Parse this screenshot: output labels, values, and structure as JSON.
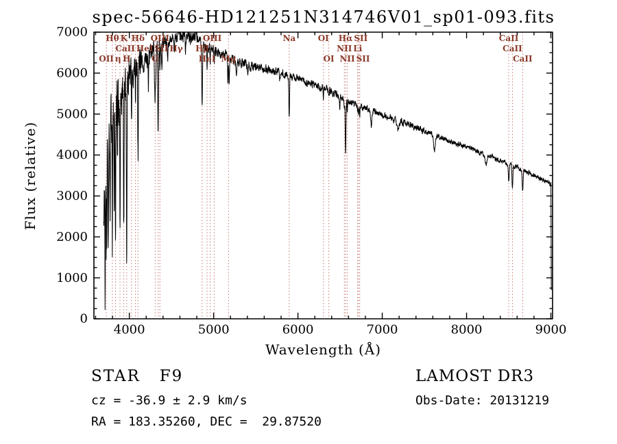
{
  "chart_data": {
    "type": "line",
    "title": "spec-56646-HD121251N314746V01_sp01-093.fits",
    "xlabel": "Wavelength (Å)",
    "ylabel": "Flux (relative)",
    "xlim": [
      3580,
      9020
    ],
    "ylim": [
      0,
      7000
    ],
    "xticks": [
      4000,
      5000,
      6000,
      7000,
      8000,
      9000
    ],
    "yticks": [
      0,
      1000,
      2000,
      3000,
      4000,
      5000,
      6000,
      7000
    ],
    "x_minor_step": 200,
    "y_minor_step": 250,
    "grid": false,
    "spectrum_color": "#000000",
    "marker_line_color": "#c4766e",
    "marker_label_color": "#8a3828",
    "sampling_step": 2,
    "wavelength_range": [
      3696,
      9000
    ],
    "edge_drop": [
      [
        9001,
        3000
      ],
      [
        9003,
        1800
      ],
      [
        9005,
        700
      ]
    ],
    "noise": {
      "seed": 20131219,
      "ar": 0.55,
      "amplitudes": [
        [
          3900,
          650
        ],
        [
          4000,
          480
        ],
        [
          4150,
          340
        ],
        [
          4400,
          210
        ],
        [
          4800,
          130
        ],
        [
          5500,
          95
        ],
        [
          6500,
          75
        ],
        [
          7500,
          60
        ],
        [
          9100,
          48
        ]
      ]
    },
    "continuum": [
      [
        3696,
        2100
      ],
      [
        3720,
        3500
      ],
      [
        3750,
        4250
      ],
      [
        3780,
        4650
      ],
      [
        3820,
        4950
      ],
      [
        3860,
        5250
      ],
      [
        3900,
        5480
      ],
      [
        3950,
        5680
      ],
      [
        4000,
        5880
      ],
      [
        4050,
        6000
      ],
      [
        4100,
        6130
      ],
      [
        4150,
        6240
      ],
      [
        4200,
        6380
      ],
      [
        4250,
        6480
      ],
      [
        4300,
        6570
      ],
      [
        4350,
        6640
      ],
      [
        4400,
        6730
      ],
      [
        4450,
        6790
      ],
      [
        4500,
        6840
      ],
      [
        4550,
        6890
      ],
      [
        4600,
        6910
      ],
      [
        4650,
        6920
      ],
      [
        4700,
        6900
      ],
      [
        4750,
        6880
      ],
      [
        4800,
        6850
      ],
      [
        4850,
        6800
      ],
      [
        4900,
        6700
      ],
      [
        4950,
        6620
      ],
      [
        5000,
        6560
      ],
      [
        5100,
        6460
      ],
      [
        5200,
        6360
      ],
      [
        5300,
        6290
      ],
      [
        5400,
        6230
      ],
      [
        5500,
        6170
      ],
      [
        5600,
        6110
      ],
      [
        5700,
        6060
      ],
      [
        5800,
        6010
      ],
      [
        5900,
        5950
      ],
      [
        6000,
        5870
      ],
      [
        6100,
        5790
      ],
      [
        6200,
        5710
      ],
      [
        6300,
        5630
      ],
      [
        6400,
        5530
      ],
      [
        6500,
        5430
      ],
      [
        6600,
        5310
      ],
      [
        6700,
        5210
      ],
      [
        6800,
        5140
      ],
      [
        6900,
        5070
      ],
      [
        7000,
        4990
      ],
      [
        7100,
        4910
      ],
      [
        7200,
        4830
      ],
      [
        7300,
        4750
      ],
      [
        7400,
        4670
      ],
      [
        7500,
        4590
      ],
      [
        7600,
        4510
      ],
      [
        7700,
        4430
      ],
      [
        7800,
        4350
      ],
      [
        7900,
        4270
      ],
      [
        8000,
        4190
      ],
      [
        8100,
        4110
      ],
      [
        8200,
        4030
      ],
      [
        8300,
        3950
      ],
      [
        8400,
        3870
      ],
      [
        8500,
        3790
      ],
      [
        8600,
        3700
      ],
      [
        8700,
        3610
      ],
      [
        8800,
        3510
      ],
      [
        8900,
        3410
      ],
      [
        9000,
        3290
      ]
    ],
    "absorption_lines": [
      [
        3712,
        2600,
        2.5
      ],
      [
        3727,
        2000,
        2.5
      ],
      [
        3734,
        2200,
        2.5
      ],
      [
        3750,
        2900,
        3
      ],
      [
        3771,
        2500,
        3
      ],
      [
        3799,
        3000,
        3
      ],
      [
        3820,
        1600,
        2.5
      ],
      [
        3836,
        3100,
        3
      ],
      [
        3860,
        1300,
        2.5
      ],
      [
        3889,
        2900,
        3
      ],
      [
        3934,
        3600,
        3.5
      ],
      [
        3969,
        4400,
        4
      ],
      [
        4026,
        1000,
        3
      ],
      [
        4072,
        800,
        3
      ],
      [
        4103,
        2200,
        4.5
      ],
      [
        4227,
        700,
        3
      ],
      [
        4306,
        1150,
        7
      ],
      [
        4342,
        1950,
        4.5
      ],
      [
        4363,
        500,
        3
      ],
      [
        4384,
        520,
        3.5
      ],
      [
        4455,
        420,
        4
      ],
      [
        4531,
        420,
        4
      ],
      [
        4668,
        350,
        4
      ],
      [
        4863,
        1550,
        5
      ],
      [
        4922,
        480,
        4
      ],
      [
        4959,
        300,
        3
      ],
      [
        5007,
        300,
        3
      ],
      [
        5169,
        620,
        4
      ],
      [
        5184,
        600,
        4
      ],
      [
        5270,
        450,
        5
      ],
      [
        5406,
        320,
        4
      ],
      [
        5782,
        250,
        4
      ],
      [
        5896,
        980,
        4.5
      ],
      [
        6302,
        260,
        3
      ],
      [
        6366,
        190,
        3
      ],
      [
        6495,
        260,
        4
      ],
      [
        6550,
        260,
        3
      ],
      [
        6565,
        1280,
        4.5
      ],
      [
        6585,
        260,
        3
      ],
      [
        6708,
        170,
        3
      ],
      [
        6718,
        210,
        3
      ],
      [
        6733,
        210,
        3
      ],
      [
        6870,
        380,
        8
      ],
      [
        7190,
        260,
        12
      ],
      [
        7620,
        380,
        10
      ],
      [
        8230,
        260,
        10
      ],
      [
        8500,
        460,
        5
      ],
      [
        8544,
        560,
        5
      ],
      [
        8665,
        520,
        5
      ]
    ],
    "marker_lines": [
      3727,
      3799,
      3836,
      3889,
      3934,
      3969,
      4026,
      4072,
      4103,
      4306,
      4342,
      4363,
      4863,
      4922,
      4959,
      5007,
      5177,
      5896,
      6302,
      6366,
      6550,
      6565,
      6585,
      6708,
      6718,
      6733,
      8500,
      8544,
      8665
    ],
    "marker_labels": [
      {
        "wavelength": 3799,
        "label": "Hθ",
        "row": 1
      },
      {
        "wavelength": 3934,
        "label": "K",
        "row": 1
      },
      {
        "wavelength": 4103,
        "label": "Hδ",
        "row": 1
      },
      {
        "wavelength": 4363,
        "label": "OIII",
        "row": 1
      },
      {
        "wavelength": 4983,
        "label": "OIII",
        "row": 1
      },
      {
        "wavelength": 5896,
        "label": "Na",
        "row": 1
      },
      {
        "wavelength": 6302,
        "label": "OI",
        "row": 1
      },
      {
        "wavelength": 6565,
        "label": "Hα",
        "row": 1
      },
      {
        "wavelength": 6718,
        "label": "SII",
        "row": 1
      },
      {
        "wavelength": 8500,
        "label": "CaII",
        "row": 1
      },
      {
        "wavelength": 3951,
        "label": "CaII",
        "row": 2
      },
      {
        "wavelength": 4026,
        "label": "HeI",
        "row": 2
      },
      {
        "wavelength": 4072,
        "label": "SII",
        "row": 2
      },
      {
        "wavelength": 4342,
        "label": "Hγ",
        "row": 2
      },
      {
        "wavelength": 4863,
        "label": "Hβ",
        "row": 2
      },
      {
        "wavelength": 6550,
        "label": "NII",
        "row": 2
      },
      {
        "wavelength": 6708,
        "label": "Li",
        "row": 2
      },
      {
        "wavelength": 8544,
        "label": "CaII",
        "row": 2
      },
      {
        "wavelength": 3727,
        "label": "OII",
        "row": 3
      },
      {
        "wavelength": 3836,
        "label": "η",
        "row": 3
      },
      {
        "wavelength": 3969,
        "label": "H",
        "row": 3
      },
      {
        "wavelength": 4306,
        "label": "G",
        "row": 3
      },
      {
        "wavelength": 4922,
        "label": "HeI",
        "row": 3
      },
      {
        "wavelength": 5177,
        "label": "Mg",
        "row": 3
      },
      {
        "wavelength": 6366,
        "label": "OI",
        "row": 3
      },
      {
        "wavelength": 6585,
        "label": "NII",
        "row": 3
      },
      {
        "wavelength": 6733,
        "label": "SII",
        "row": 3
      },
      {
        "wavelength": 8665,
        "label": "CaII",
        "row": 3
      }
    ]
  },
  "annotations": {
    "class_line": "STAR   F9",
    "cz_line": "cz = -36.9 ± 2.9 km/s",
    "radec_line": "RA = 183.35260, DEC =  29.87520",
    "survey": "LAMOST DR3",
    "obs_date": "Obs-Date: 20131219"
  }
}
